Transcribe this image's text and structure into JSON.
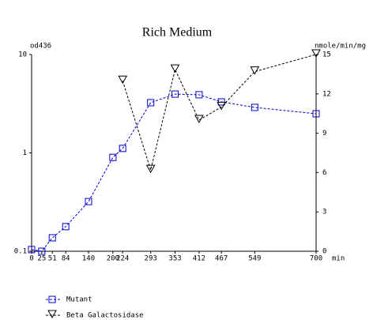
{
  "chart_data": {
    "type": "line",
    "title": "Rich Medium",
    "ylabel": "od436",
    "y2label": "nmole/min/mg",
    "xlabel": "min",
    "x": [
      0,
      25,
      51,
      84,
      140,
      200,
      224,
      293,
      353,
      412,
      467,
      549,
      700
    ],
    "xlim": [
      0,
      700
    ],
    "xticks": [
      0,
      25,
      51,
      84,
      140,
      200,
      224,
      293,
      353,
      412,
      467,
      549,
      700
    ],
    "ylim": [
      0.1,
      10
    ],
    "yticks": [
      0.1,
      1,
      10
    ],
    "ylog": true,
    "y2lim": [
      0,
      15
    ],
    "y2ticks": [
      0,
      3,
      6,
      9,
      12,
      15
    ],
    "legend": "bottom-left",
    "series": [
      {
        "name": "Mutant",
        "color": "#0000cc",
        "marker": "square",
        "values": [
          0.104,
          0.1,
          0.137,
          0.178,
          0.32,
          0.9,
          1.11,
          3.24,
          3.96,
          3.9,
          3.3,
          2.9,
          2.5
        ]
      },
      {
        "name": "Beta Galactosidase",
        "color": "#000000",
        "marker": "triangle-down",
        "axis": "y2",
        "values": [
          null,
          null,
          null,
          null,
          null,
          null,
          13,
          6.2,
          13.85,
          10,
          11,
          13.7,
          15
        ]
      }
    ]
  }
}
